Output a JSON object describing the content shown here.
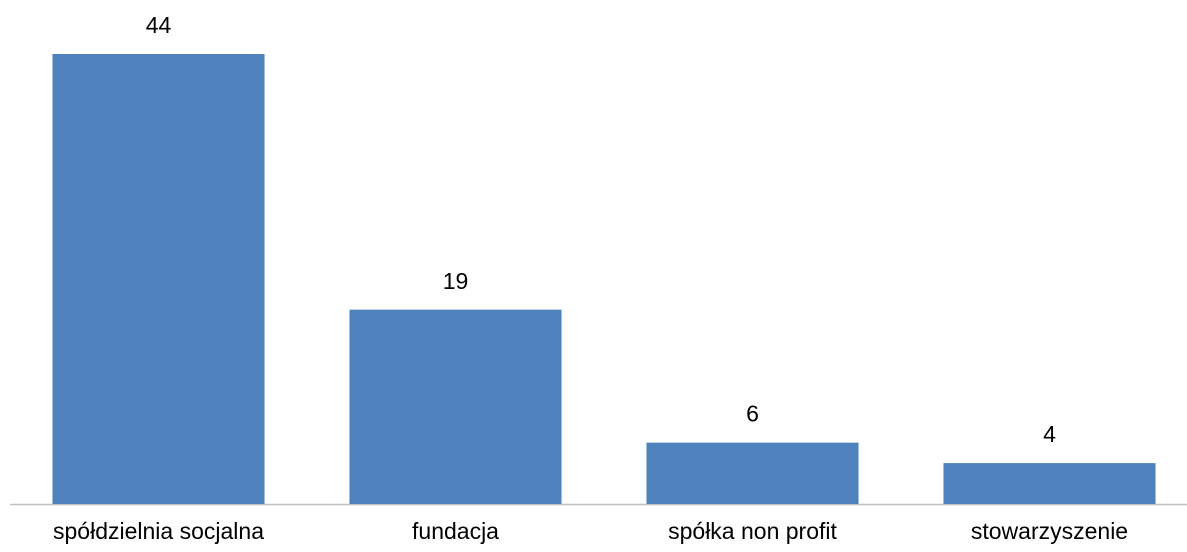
{
  "chart_data": {
    "type": "bar",
    "categories": [
      "spółdzielnia socjalna",
      "fundacja",
      "spółka non profit",
      "stowarzyszenie"
    ],
    "values": [
      44,
      19,
      6,
      4
    ],
    "color": "#4f81bd"
  }
}
